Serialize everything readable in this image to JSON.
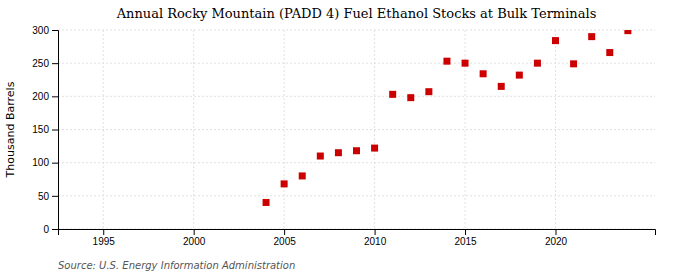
{
  "chart_data": {
    "type": "scatter",
    "title": "Annual Rocky Mountain (PADD 4) Fuel Ethanol Stocks at Bulk Terminals",
    "y_label": "Thousand Barrels",
    "annotations": [
      "Source: U.S. Energy Information Administration"
    ],
    "x": [
      2004,
      2005,
      2006,
      2007,
      2008,
      2009,
      2010,
      2011,
      2012,
      2013,
      2014,
      2015,
      2016,
      2017,
      2018,
      2019,
      2020,
      2021,
      2022,
      2023,
      2024
    ],
    "values": [
      40,
      68,
      80,
      110,
      115,
      118,
      122,
      203,
      198,
      207,
      253,
      250,
      234,
      215,
      232,
      250,
      284,
      249,
      290,
      266,
      299
    ],
    "color": "#cc0000",
    "marker": "square",
    "xlim": [
      1992.5,
      2025.5
    ],
    "xticks": [
      1995,
      2000,
      2005,
      2010,
      2015,
      2020
    ],
    "ylim": [
      0,
      300
    ],
    "yticks": [
      0,
      50,
      100,
      150,
      200,
      250,
      300
    ],
    "grid": true
  }
}
